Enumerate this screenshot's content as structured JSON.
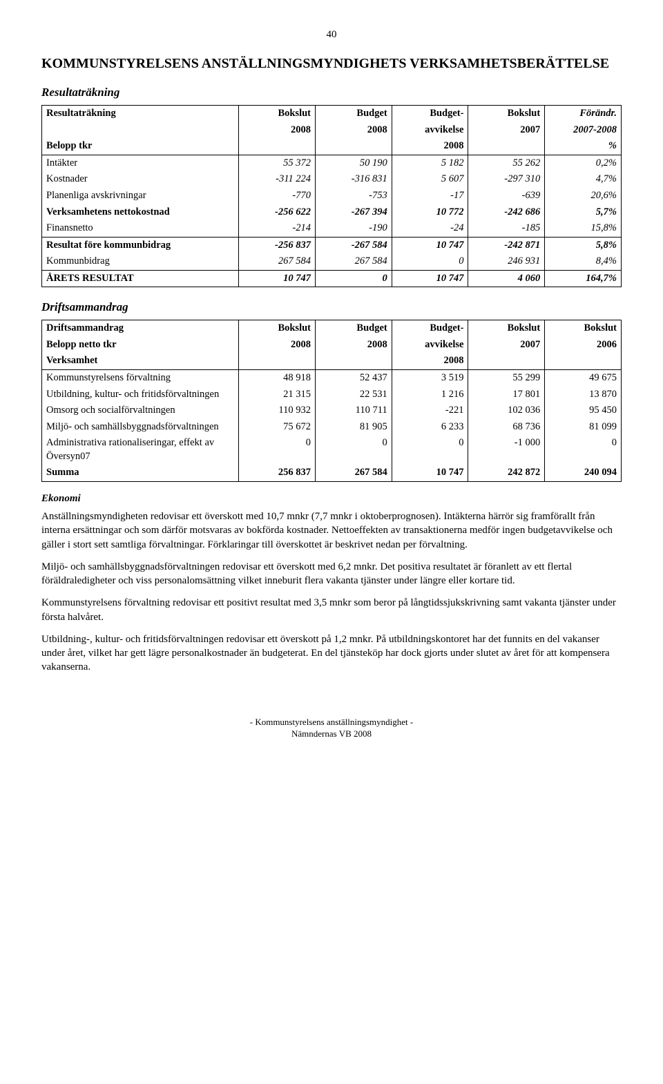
{
  "pageNumber": "40",
  "title": "KOMMUNSTYRELSENS ANSTÄLLNINGSMYNDIGHETS VERKSAMHETSBERÄTTELSE",
  "section1": {
    "heading": "Resultaträkning",
    "table": {
      "head": {
        "r1": [
          "Resultaträkning",
          "Bokslut",
          "Budget",
          "Budget-",
          "Bokslut",
          "Förändr."
        ],
        "r2": [
          "",
          "2008",
          "2008",
          "avvikelse",
          "2007",
          "2007-2008"
        ],
        "r3": [
          "Belopp tkr",
          "",
          "",
          "2008",
          "",
          "%"
        ]
      },
      "rows": [
        {
          "label": "Intäkter",
          "c": [
            "55 372",
            "50 190",
            "5 182",
            "55 262",
            "0,2%"
          ],
          "italic": true
        },
        {
          "label": "Kostnader",
          "c": [
            "-311 224",
            "-316 831",
            "5 607",
            "-297 310",
            "4,7%"
          ],
          "italic": true
        },
        {
          "label": "Planenliga avskrivningar",
          "c": [
            "-770",
            "-753",
            "-17",
            "-639",
            "20,6%"
          ],
          "italic": true
        },
        {
          "label": "Verksamhetens nettokostnad",
          "c": [
            "-256 622",
            "-267 394",
            "10 772",
            "-242 686",
            "5,7%"
          ],
          "bold": true,
          "italic": true
        },
        {
          "label": "Finansnetto",
          "c": [
            "-214",
            "-190",
            "-24",
            "-185",
            "15,8%"
          ],
          "italic": true
        },
        {
          "label": "Resultat före kommunbidrag",
          "c": [
            "-256 837",
            "-267 584",
            "10 747",
            "-242 871",
            "5,8%"
          ],
          "bold": true,
          "italic": true,
          "break": true
        },
        {
          "label": "Kommunbidrag",
          "c": [
            "267 584",
            "267 584",
            "0",
            "246 931",
            "8,4%"
          ],
          "italic": true
        },
        {
          "label": "ÅRETS RESULTAT",
          "c": [
            "10 747",
            "0",
            "10 747",
            "4 060",
            "164,7%"
          ],
          "bold": true,
          "italic": true,
          "break": true,
          "last": true
        }
      ]
    }
  },
  "section2": {
    "heading": "Driftsammandrag",
    "table": {
      "head": {
        "r1": [
          "Driftsammandrag",
          "Bokslut",
          "Budget",
          "Budget-",
          "Bokslut",
          "Bokslut"
        ],
        "r2": [
          "Belopp netto tkr",
          "2008",
          "2008",
          "avvikelse",
          "2007",
          "2006"
        ],
        "r3": [
          "Verksamhet",
          "",
          "",
          "2008",
          "",
          ""
        ]
      },
      "rows": [
        {
          "label": "Kommunstyrelsens förvaltning",
          "c": [
            "48 918",
            "52 437",
            "3 519",
            "55 299",
            "49 675"
          ]
        },
        {
          "label": "Utbildning, kultur- och fritidsförvaltningen",
          "c": [
            "21 315",
            "22 531",
            "1 216",
            "17 801",
            "13 870"
          ]
        },
        {
          "label": "Omsorg och socialförvaltningen",
          "c": [
            "110 932",
            "110 711",
            "-221",
            "102 036",
            "95 450"
          ]
        },
        {
          "label": "Miljö- och samhällsbyggnadsförvaltningen",
          "c": [
            "75 672",
            "81 905",
            "6 233",
            "68 736",
            "81 099"
          ]
        },
        {
          "label": "Administrativa rationaliseringar, effekt av Översyn07",
          "c": [
            "0",
            "0",
            "0",
            "-1 000",
            "0"
          ]
        },
        {
          "label": "Summa",
          "c": [
            "256 837",
            "267 584",
            "10 747",
            "242 872",
            "240 094"
          ],
          "bold": true,
          "last": true
        }
      ]
    }
  },
  "ekonomi": {
    "heading": "Ekonomi",
    "p1": "Anställningsmyndigheten redovisar ett överskott med 10,7 mnkr (7,7 mnkr i oktoberprognosen). Intäkterna härrör sig framförallt från interna ersättningar och som därför motsvaras av bokförda kostnader. Nettoeffekten av transaktionerna medför ingen budgetavvikelse och gäller i stort sett samtliga förvaltningar. Förklaringar till överskottet är beskrivet nedan per förvaltning.",
    "p2": "Miljö- och samhällsbyggnadsförvaltningen redovisar ett överskott med 6,2 mnkr. Det positiva resultatet är föranlett av ett flertal föräldraledigheter och viss personalomsättning vilket inneburit flera vakanta tjänster under längre eller kortare tid.",
    "p3": "Kommunstyrelsens förvaltning redovisar ett positivt resultat med 3,5 mnkr som beror på långtidssjukskrivning samt vakanta tjänster under första halvåret.",
    "p4": "Utbildning-, kultur- och fritidsförvaltningen redovisar ett överskott på 1,2 mnkr. På utbildningskontoret har det funnits en del vakanser under året, vilket har gett lägre personalkostnader än budgeterat. En del tjänsteköp har dock gjorts under slutet av året för att kompensera vakanserna."
  },
  "footer": {
    "line1": "- Kommunstyrelsens anställningsmyndighet -",
    "line2": "Nämndernas VB 2008"
  }
}
